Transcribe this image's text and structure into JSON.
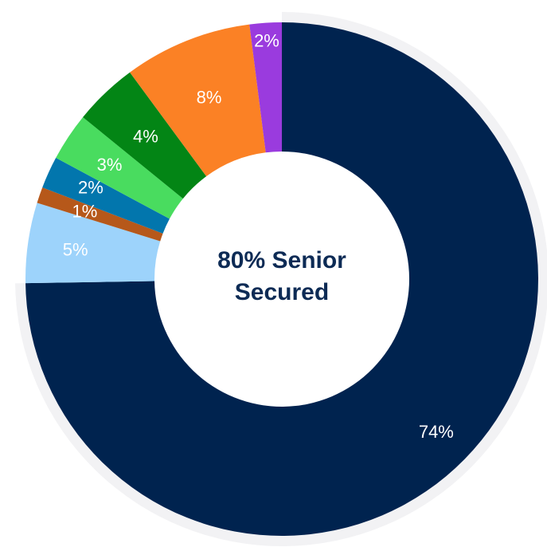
{
  "chart_data": {
    "type": "pie",
    "center_label": [
      "80% Senior",
      "Secured"
    ],
    "slices": [
      {
        "value": 74,
        "label": "74%",
        "color": "#00234f"
      },
      {
        "value": 5,
        "label": "5%",
        "color": "#9dd3fb"
      },
      {
        "value": 1,
        "label": "1%",
        "color": "#b6581a"
      },
      {
        "value": 2,
        "label": "2%",
        "color": "#0276ad"
      },
      {
        "value": 3,
        "label": "3%",
        "color": "#49dc5f"
      },
      {
        "value": 4,
        "label": "4%",
        "color": "#038515"
      },
      {
        "value": 8,
        "label": "8%",
        "color": "#fb8125"
      },
      {
        "value": 2,
        "label": "2%",
        "color": "#9a3bde"
      }
    ],
    "highlight_ring_color": "#f2f2f4"
  }
}
